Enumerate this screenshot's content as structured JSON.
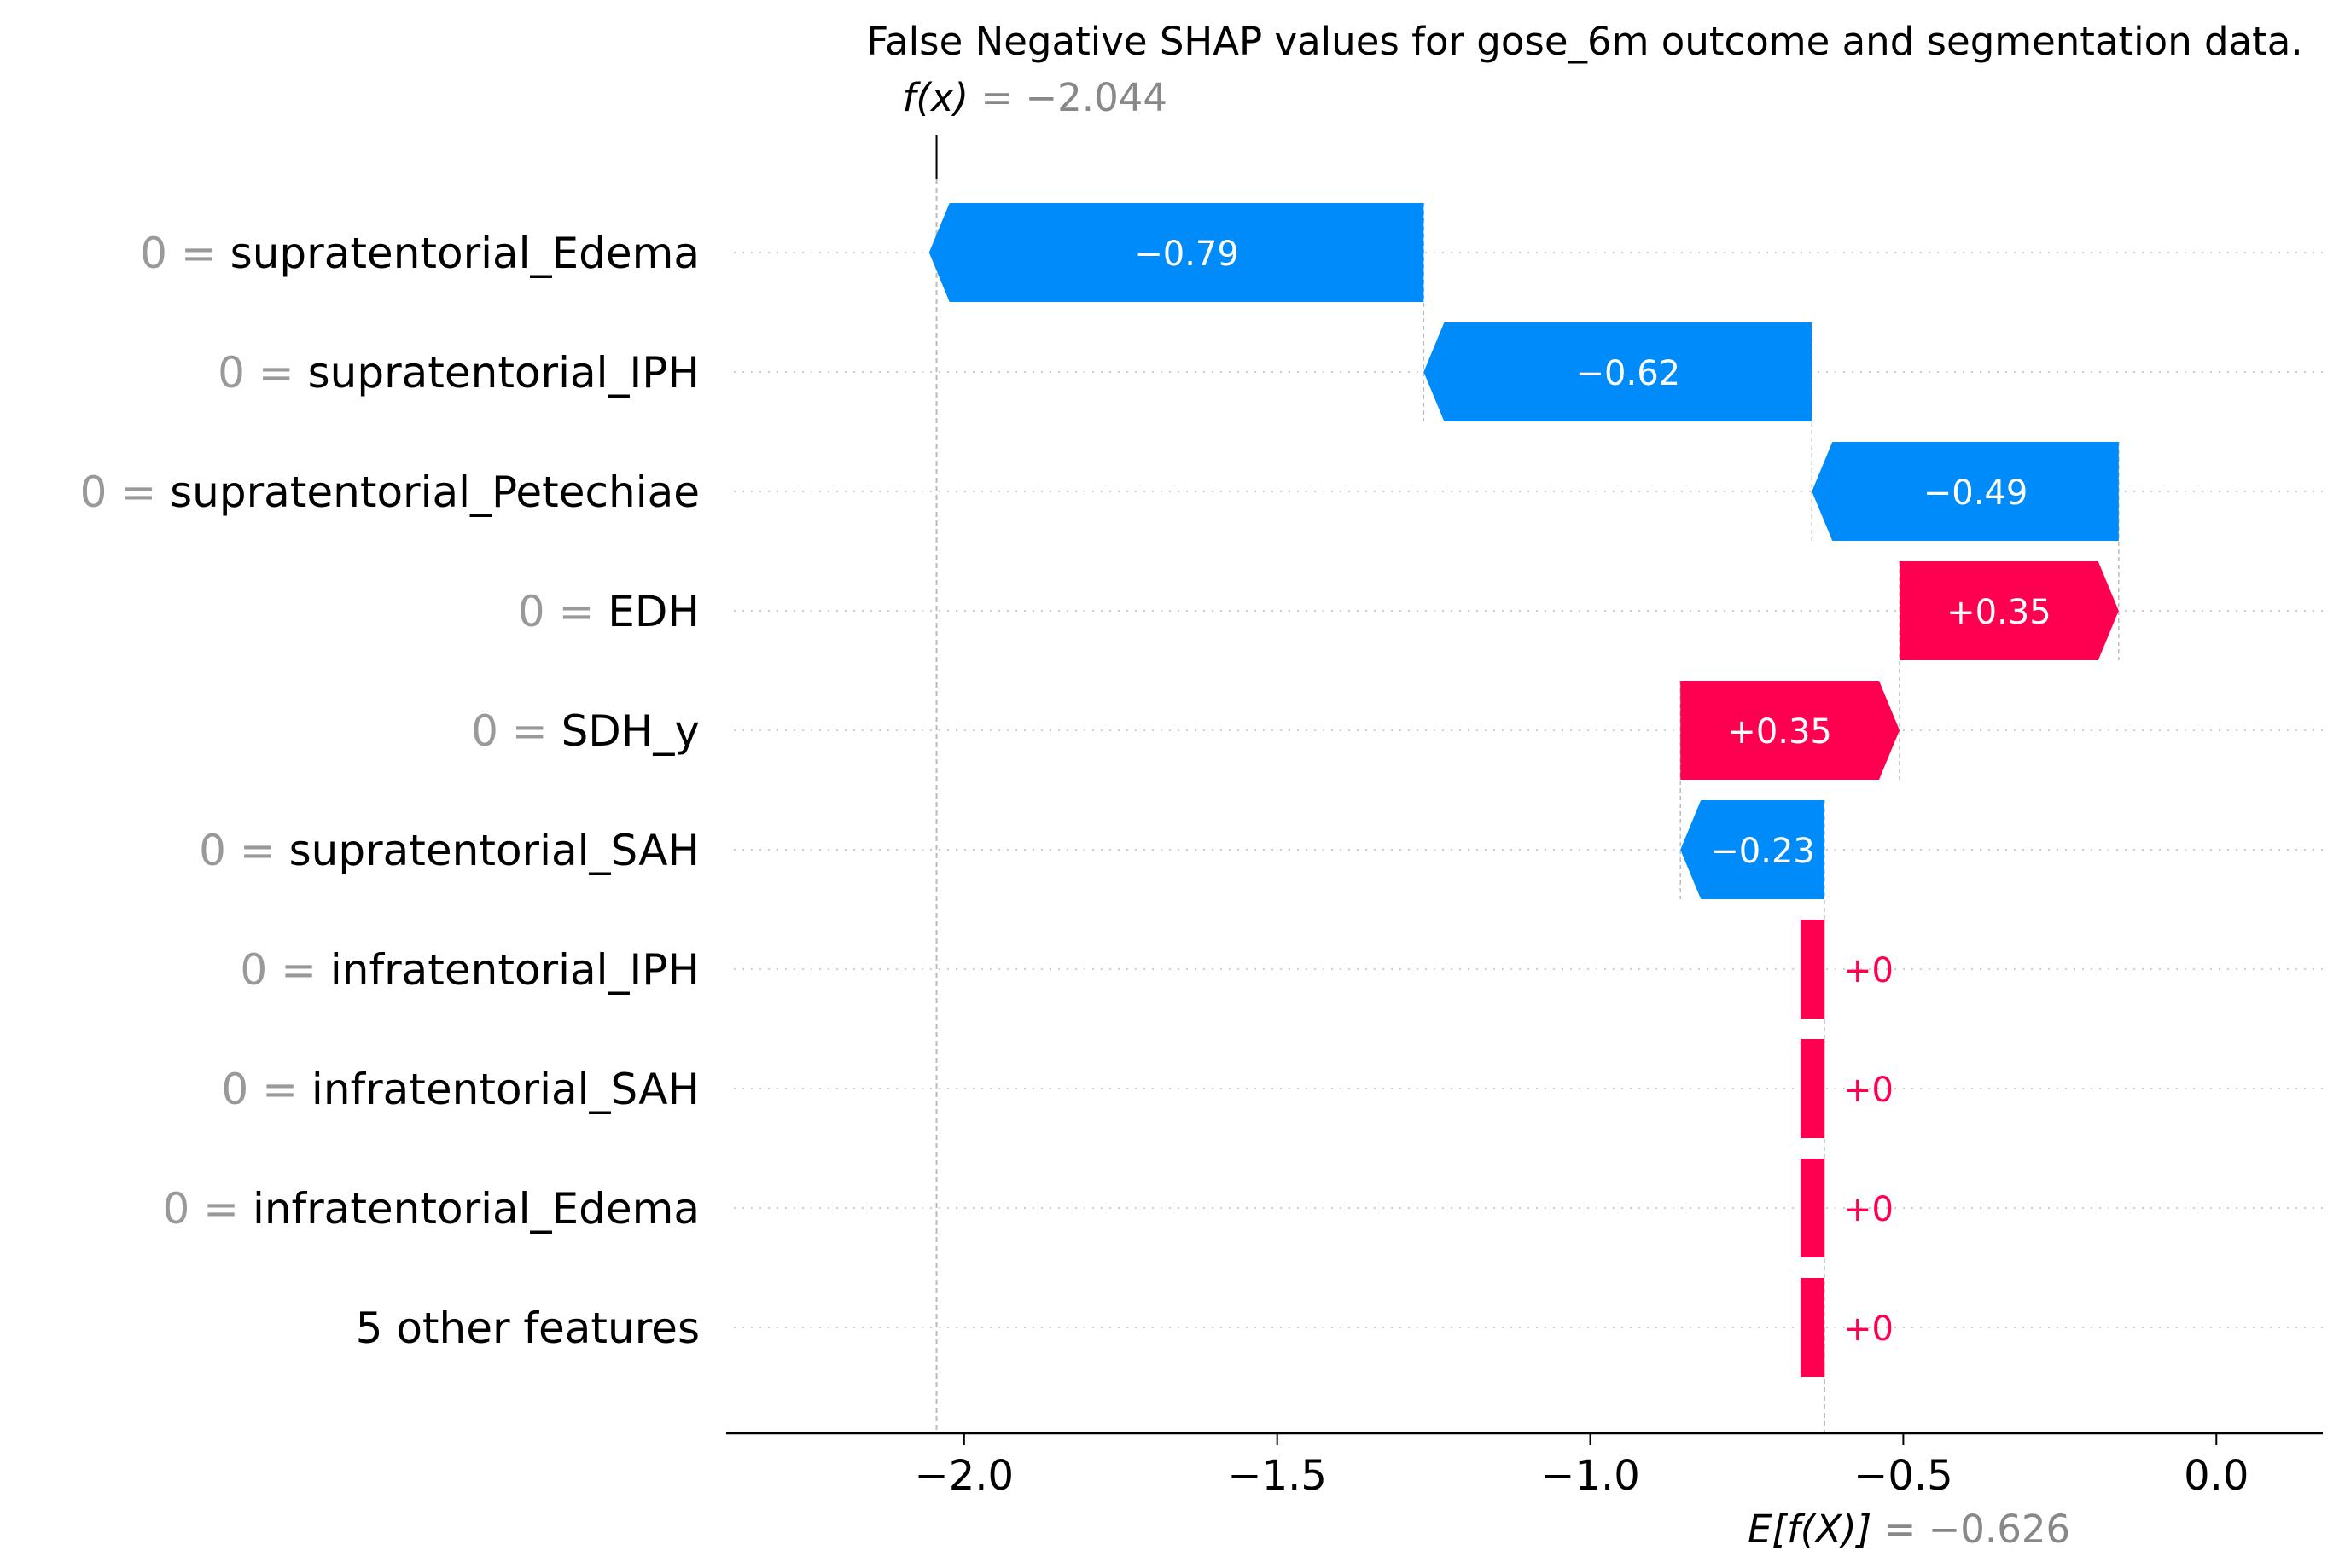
{
  "chart_data": {
    "type": "waterfall",
    "title": "False Negative SHAP values for gose_6m outcome and segmentation data.",
    "fx": {
      "label": "f(x)",
      "value_text": " = −2.044",
      "value": -2.044
    },
    "base": {
      "label": "E[f(X)]",
      "value_text": " = −0.626",
      "value": -0.626
    },
    "xlim": [
      -2.38,
      0.17
    ],
    "xticks": [
      {
        "value": -2.0,
        "label": "−2.0"
      },
      {
        "value": -1.5,
        "label": "−1.5"
      },
      {
        "value": -1.0,
        "label": "−1.0"
      },
      {
        "value": -0.5,
        "label": "−0.5"
      },
      {
        "value": 0.0,
        "label": "0.0"
      }
    ],
    "features": [
      {
        "value_prefix": "0 = ",
        "name": "supratentorial_Edema",
        "shap": -0.79,
        "label": "−0.79"
      },
      {
        "value_prefix": "0 = ",
        "name": "supratentorial_IPH",
        "shap": -0.62,
        "label": "−0.62"
      },
      {
        "value_prefix": "0 = ",
        "name": "supratentorial_Petechiae",
        "shap": -0.49,
        "label": "−0.49"
      },
      {
        "value_prefix": "0 = ",
        "name": "EDH",
        "shap": 0.35,
        "label": "+0.35"
      },
      {
        "value_prefix": "0 = ",
        "name": "SDH_y",
        "shap": 0.35,
        "label": "+0.35"
      },
      {
        "value_prefix": "0 = ",
        "name": "supratentorial_SAH",
        "shap": -0.23,
        "label": "−0.23"
      },
      {
        "value_prefix": "0 = ",
        "name": "infratentorial_IPH",
        "shap": 0.0,
        "label": "+0"
      },
      {
        "value_prefix": "0 = ",
        "name": "infratentorial_SAH",
        "shap": 0.0,
        "label": "+0"
      },
      {
        "value_prefix": "0 = ",
        "name": "infratentorial_Edema",
        "shap": 0.0,
        "label": "+0"
      },
      {
        "value_prefix": "",
        "name": "5 other features",
        "shap": 0.0,
        "label": "+0"
      }
    ],
    "colors": {
      "positive": "#ff0051",
      "negative": "#008bfb",
      "prefix_text": "#999999",
      "text": "#000000",
      "grid": "#cccccc"
    }
  }
}
